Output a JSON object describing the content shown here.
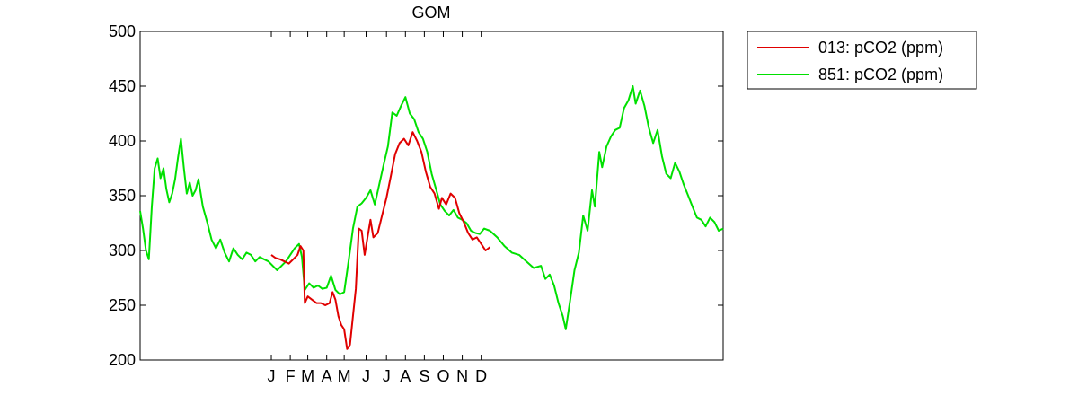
{
  "chart_data": {
    "type": "line",
    "title": "GOM",
    "xlabel": "",
    "ylabel": "",
    "ylim": [
      200,
      500
    ],
    "yticks": [
      200,
      250,
      300,
      350,
      400,
      450,
      500
    ],
    "xlim": [
      0,
      40
    ],
    "month_ticks": [
      {
        "label": "J",
        "x": 9.0
      },
      {
        "label": "F",
        "x": 10.3
      },
      {
        "label": "M",
        "x": 11.5
      },
      {
        "label": "A",
        "x": 12.8
      },
      {
        "label": "M",
        "x": 14.0
      },
      {
        "label": "J",
        "x": 15.5
      },
      {
        "label": "J",
        "x": 16.9
      },
      {
        "label": "A",
        "x": 18.2
      },
      {
        "label": "S",
        "x": 19.5
      },
      {
        "label": "O",
        "x": 20.8
      },
      {
        "label": "N",
        "x": 22.1
      },
      {
        "label": "D",
        "x": 23.4
      }
    ],
    "grid": false,
    "legend_position": "outside top-right",
    "series": [
      {
        "name": "013: pCO2 (ppm)",
        "color": "#e00000",
        "points": [
          [
            9.0,
            296
          ],
          [
            9.3,
            293
          ],
          [
            9.6,
            292
          ],
          [
            9.9,
            290
          ],
          [
            10.2,
            288
          ],
          [
            10.5,
            292
          ],
          [
            10.8,
            296
          ],
          [
            11.0,
            304
          ],
          [
            11.2,
            300
          ],
          [
            11.3,
            252
          ],
          [
            11.5,
            258
          ],
          [
            11.8,
            255
          ],
          [
            12.1,
            252
          ],
          [
            12.4,
            252
          ],
          [
            12.7,
            250
          ],
          [
            13.0,
            252
          ],
          [
            13.2,
            262
          ],
          [
            13.4,
            255
          ],
          [
            13.6,
            240
          ],
          [
            13.8,
            232
          ],
          [
            14.0,
            228
          ],
          [
            14.2,
            210
          ],
          [
            14.4,
            214
          ],
          [
            14.6,
            240
          ],
          [
            14.8,
            265
          ],
          [
            15.0,
            320
          ],
          [
            15.2,
            318
          ],
          [
            15.4,
            296
          ],
          [
            15.6,
            312
          ],
          [
            15.8,
            328
          ],
          [
            16.0,
            312
          ],
          [
            16.3,
            316
          ],
          [
            16.6,
            332
          ],
          [
            16.9,
            348
          ],
          [
            17.2,
            368
          ],
          [
            17.5,
            388
          ],
          [
            17.8,
            398
          ],
          [
            18.1,
            402
          ],
          [
            18.4,
            396
          ],
          [
            18.7,
            408
          ],
          [
            19.0,
            400
          ],
          [
            19.3,
            390
          ],
          [
            19.6,
            372
          ],
          [
            19.9,
            358
          ],
          [
            20.2,
            352
          ],
          [
            20.5,
            338
          ],
          [
            20.7,
            348
          ],
          [
            21.0,
            342
          ],
          [
            21.3,
            352
          ],
          [
            21.6,
            348
          ],
          [
            21.9,
            334
          ],
          [
            22.2,
            326
          ],
          [
            22.5,
            316
          ],
          [
            22.8,
            310
          ],
          [
            23.1,
            312
          ],
          [
            23.4,
            306
          ],
          [
            23.7,
            300
          ],
          [
            24.0,
            303
          ]
        ]
      },
      {
        "name": "851: pCO2 (ppm)",
        "color": "#00e000",
        "points": [
          [
            0.0,
            336
          ],
          [
            0.2,
            320
          ],
          [
            0.4,
            300
          ],
          [
            0.6,
            292
          ],
          [
            0.8,
            340
          ],
          [
            1.0,
            375
          ],
          [
            1.2,
            384
          ],
          [
            1.4,
            366
          ],
          [
            1.6,
            375
          ],
          [
            1.8,
            356
          ],
          [
            2.0,
            344
          ],
          [
            2.2,
            352
          ],
          [
            2.4,
            365
          ],
          [
            2.6,
            385
          ],
          [
            2.8,
            402
          ],
          [
            3.0,
            375
          ],
          [
            3.2,
            352
          ],
          [
            3.4,
            362
          ],
          [
            3.6,
            350
          ],
          [
            3.8,
            355
          ],
          [
            4.0,
            365
          ],
          [
            4.3,
            340
          ],
          [
            4.6,
            326
          ],
          [
            4.9,
            310
          ],
          [
            5.2,
            302
          ],
          [
            5.5,
            310
          ],
          [
            5.8,
            298
          ],
          [
            6.1,
            290
          ],
          [
            6.4,
            302
          ],
          [
            6.7,
            296
          ],
          [
            7.0,
            292
          ],
          [
            7.3,
            298
          ],
          [
            7.6,
            296
          ],
          [
            7.9,
            290
          ],
          [
            8.2,
            294
          ],
          [
            8.5,
            292
          ],
          [
            8.8,
            290
          ],
          [
            9.1,
            286
          ],
          [
            9.4,
            282
          ],
          [
            9.7,
            286
          ],
          [
            10.0,
            290
          ],
          [
            10.3,
            296
          ],
          [
            10.6,
            302
          ],
          [
            10.9,
            306
          ],
          [
            11.1,
            294
          ],
          [
            11.3,
            264
          ],
          [
            11.6,
            270
          ],
          [
            11.9,
            266
          ],
          [
            12.2,
            268
          ],
          [
            12.5,
            265
          ],
          [
            12.8,
            266
          ],
          [
            13.1,
            277
          ],
          [
            13.4,
            264
          ],
          [
            13.7,
            260
          ],
          [
            14.0,
            262
          ],
          [
            14.3,
            290
          ],
          [
            14.6,
            320
          ],
          [
            14.9,
            340
          ],
          [
            15.2,
            343
          ],
          [
            15.5,
            348
          ],
          [
            15.8,
            355
          ],
          [
            16.1,
            342
          ],
          [
            16.4,
            360
          ],
          [
            16.7,
            378
          ],
          [
            17.0,
            395
          ],
          [
            17.3,
            426
          ],
          [
            17.6,
            423
          ],
          [
            17.9,
            432
          ],
          [
            18.2,
            440
          ],
          [
            18.5,
            425
          ],
          [
            18.8,
            420
          ],
          [
            19.1,
            408
          ],
          [
            19.4,
            402
          ],
          [
            19.7,
            390
          ],
          [
            20.0,
            370
          ],
          [
            20.3,
            356
          ],
          [
            20.6,
            342
          ],
          [
            20.9,
            336
          ],
          [
            21.2,
            332
          ],
          [
            21.5,
            337
          ],
          [
            21.8,
            330
          ],
          [
            22.1,
            328
          ],
          [
            22.4,
            325
          ],
          [
            22.7,
            318
          ],
          [
            23.0,
            316
          ],
          [
            23.3,
            315
          ],
          [
            23.6,
            320
          ],
          [
            24.0,
            318
          ],
          [
            24.5,
            312
          ],
          [
            25.0,
            304
          ],
          [
            25.5,
            298
          ],
          [
            26.0,
            296
          ],
          [
            26.5,
            290
          ],
          [
            27.0,
            284
          ],
          [
            27.5,
            286
          ],
          [
            27.8,
            274
          ],
          [
            28.1,
            278
          ],
          [
            28.4,
            268
          ],
          [
            28.7,
            252
          ],
          [
            29.0,
            240
          ],
          [
            29.2,
            228
          ],
          [
            29.5,
            254
          ],
          [
            29.8,
            282
          ],
          [
            30.1,
            298
          ],
          [
            30.4,
            332
          ],
          [
            30.7,
            318
          ],
          [
            31.0,
            355
          ],
          [
            31.2,
            340
          ],
          [
            31.5,
            390
          ],
          [
            31.7,
            376
          ],
          [
            32.0,
            395
          ],
          [
            32.3,
            404
          ],
          [
            32.6,
            410
          ],
          [
            32.9,
            412
          ],
          [
            33.2,
            430
          ],
          [
            33.5,
            437
          ],
          [
            33.8,
            450
          ],
          [
            34.0,
            434
          ],
          [
            34.3,
            446
          ],
          [
            34.6,
            432
          ],
          [
            34.9,
            412
          ],
          [
            35.2,
            398
          ],
          [
            35.5,
            410
          ],
          [
            35.8,
            386
          ],
          [
            36.1,
            370
          ],
          [
            36.4,
            366
          ],
          [
            36.7,
            380
          ],
          [
            37.0,
            372
          ],
          [
            37.3,
            360
          ],
          [
            37.6,
            350
          ],
          [
            37.9,
            340
          ],
          [
            38.2,
            330
          ],
          [
            38.5,
            328
          ],
          [
            38.8,
            322
          ],
          [
            39.1,
            330
          ],
          [
            39.4,
            326
          ],
          [
            39.7,
            318
          ],
          [
            40.0,
            320
          ]
        ]
      }
    ]
  }
}
